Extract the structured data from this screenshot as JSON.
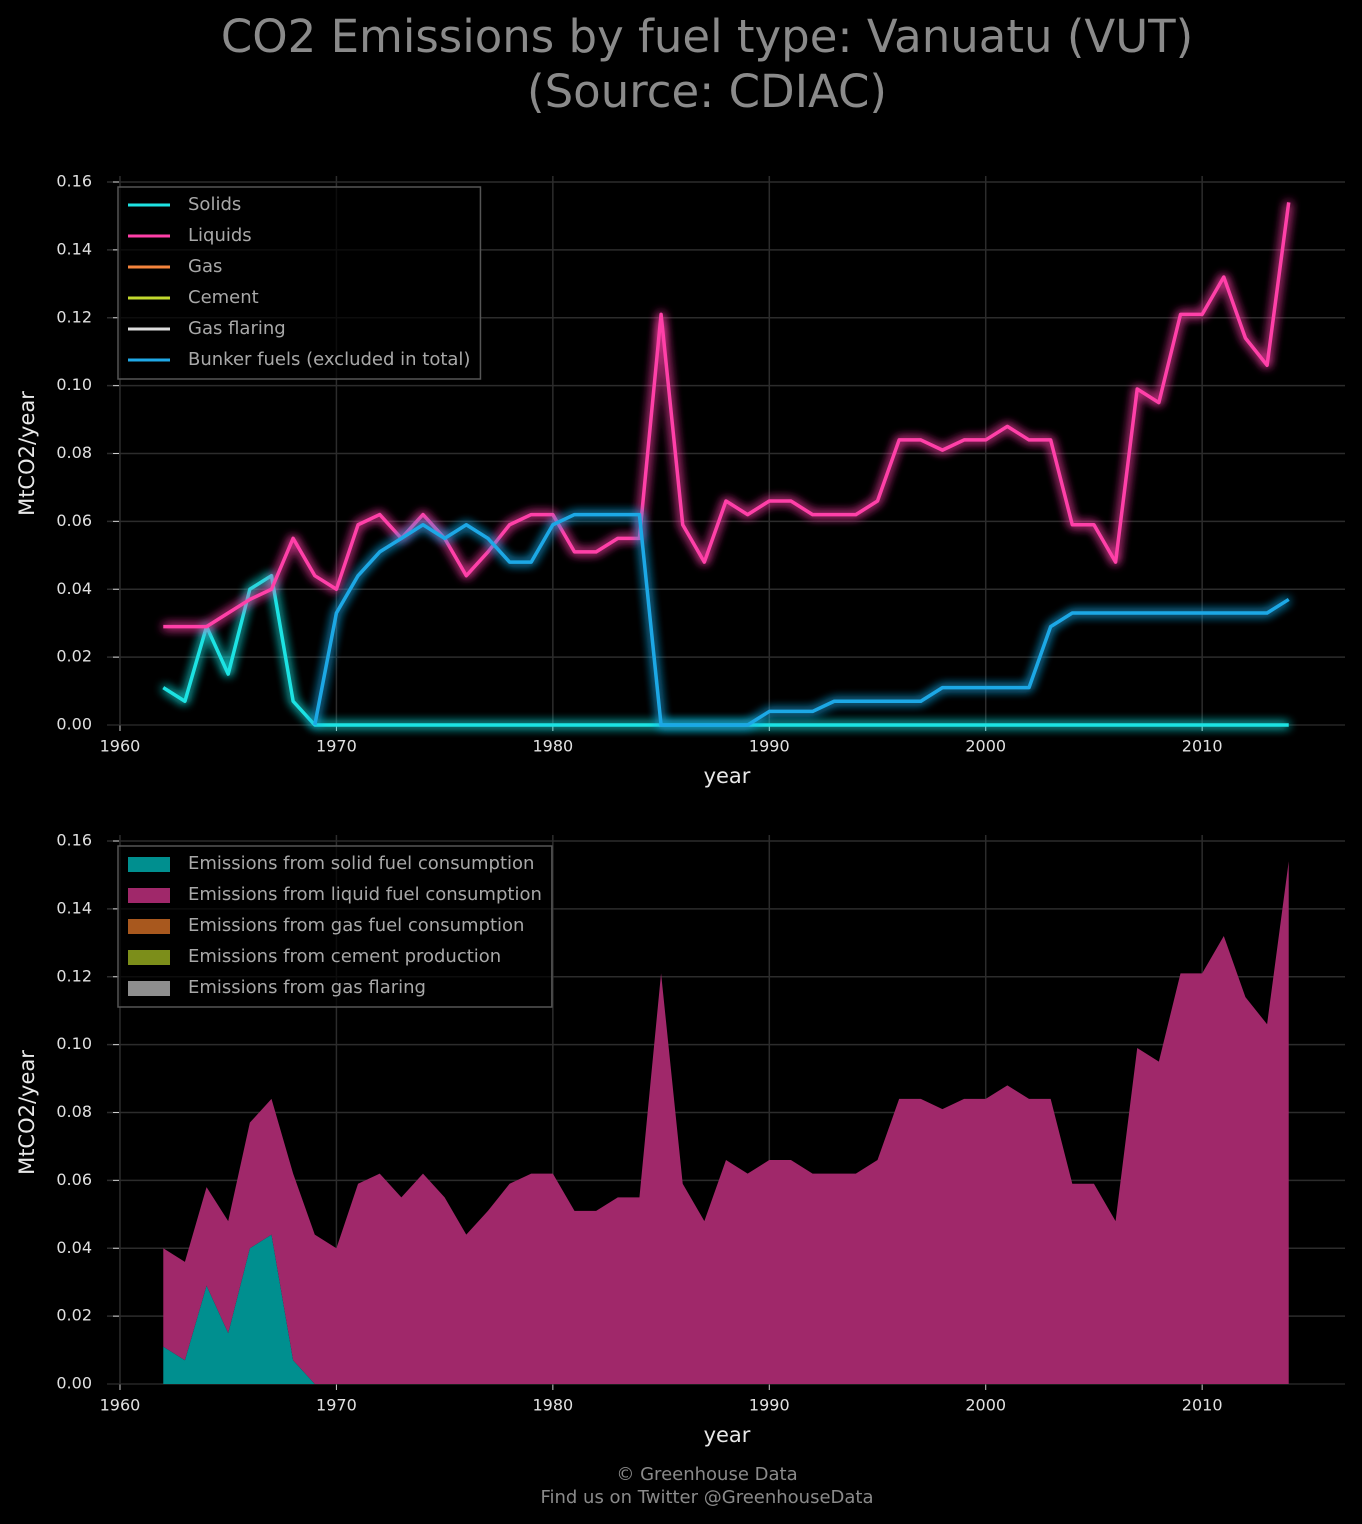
{
  "title": "CO2 Emissions by fuel type: Vanuatu (VUT)",
  "subtitle": "(Source: CDIAC)",
  "footer": [
    "© Greenhouse Data",
    "Find us on Twitter @GreenhouseData"
  ],
  "chart_data": [
    {
      "type": "line",
      "xlabel": "year",
      "ylabel": "MtCO2/year",
      "x": [
        1962,
        1963,
        1964,
        1965,
        1966,
        1967,
        1968,
        1969,
        1970,
        1971,
        1972,
        1973,
        1974,
        1975,
        1976,
        1977,
        1978,
        1979,
        1980,
        1981,
        1982,
        1983,
        1984,
        1985,
        1986,
        1987,
        1988,
        1989,
        1990,
        1991,
        1992,
        1993,
        1994,
        1995,
        1996,
        1997,
        1998,
        1999,
        2000,
        2001,
        2002,
        2003,
        2004,
        2005,
        2006,
        2007,
        2008,
        2009,
        2010,
        2011,
        2012,
        2013,
        2014
      ],
      "xlim": [
        1959.4,
        2016.6
      ],
      "xticks": [
        1960,
        1970,
        1980,
        1990,
        2000,
        2010
      ],
      "ylim": [
        0,
        0.16
      ],
      "yticks": [
        {
          "value": 0,
          "label": "0.00"
        },
        0.02,
        0.04,
        0.06,
        0.08,
        {
          "value": 0.1,
          "label": "0.10"
        },
        0.12,
        0.14,
        0.16
      ],
      "grid": true,
      "legend": "upper left",
      "series": [
        {
          "name": "Solids",
          "color": "#1ee3e3",
          "values": [
            0.011,
            0.007,
            0.029,
            0.015,
            0.04,
            0.044,
            0.007,
            0,
            0,
            0,
            0,
            0,
            0,
            0,
            0,
            0,
            0,
            0,
            0,
            0,
            0,
            0,
            0,
            0,
            0,
            0,
            0,
            0,
            0,
            0,
            0,
            0,
            0,
            0,
            0,
            0,
            0,
            0,
            0,
            0,
            0,
            0,
            0,
            0,
            0,
            0,
            0,
            0,
            0,
            0,
            0,
            0,
            0
          ]
        },
        {
          "name": "Liquids",
          "color": "#ff3fa8",
          "values": [
            0.029,
            0.029,
            0.029,
            0.033,
            0.037,
            0.04,
            0.055,
            0.044,
            0.04,
            0.059,
            0.062,
            0.055,
            0.062,
            0.055,
            0.044,
            0.051,
            0.059,
            0.062,
            0.062,
            0.051,
            0.051,
            0.055,
            0.055,
            0.121,
            0.059,
            0.048,
            0.066,
            0.062,
            0.066,
            0.066,
            0.062,
            0.062,
            0.062,
            0.066,
            0.084,
            0.084,
            0.081,
            0.084,
            0.084,
            0.088,
            0.084,
            0.084,
            0.059,
            0.059,
            0.048,
            0.099,
            0.095,
            0.121,
            0.121,
            0.132,
            0.114,
            0.106,
            0.154
          ]
        },
        {
          "name": "Gas",
          "color": "#f5843c",
          "values": [
            0,
            0,
            0,
            0,
            0,
            0,
            0,
            0,
            0,
            0,
            0,
            0,
            0,
            0,
            0,
            0,
            0,
            0,
            0,
            0,
            0,
            0,
            0,
            0,
            0,
            0,
            0,
            0,
            0,
            0,
            0,
            0,
            0,
            0,
            0,
            0,
            0,
            0,
            0,
            0,
            0,
            0,
            0,
            0,
            0,
            0,
            0,
            0,
            0,
            0,
            0,
            0,
            0
          ]
        },
        {
          "name": "Cement",
          "color": "#c2d92e",
          "values": [
            0,
            0,
            0,
            0,
            0,
            0,
            0,
            0,
            0,
            0,
            0,
            0,
            0,
            0,
            0,
            0,
            0,
            0,
            0,
            0,
            0,
            0,
            0,
            0,
            0,
            0,
            0,
            0,
            0,
            0,
            0,
            0,
            0,
            0,
            0,
            0,
            0,
            0,
            0,
            0,
            0,
            0,
            0,
            0,
            0,
            0,
            0,
            0,
            0,
            0,
            0,
            0,
            0
          ]
        },
        {
          "name": "Gas flaring",
          "color": "#dddddd",
          "values": [
            0,
            0,
            0,
            0,
            0,
            0,
            0,
            0,
            0,
            0,
            0,
            0,
            0,
            0,
            0,
            0,
            0,
            0,
            0,
            0,
            0,
            0,
            0,
            0,
            0,
            0,
            0,
            0,
            0,
            0,
            0,
            0,
            0,
            0,
            0,
            0,
            0,
            0,
            0,
            0,
            0,
            0,
            0,
            0,
            0,
            0,
            0,
            0,
            0,
            0,
            0,
            0,
            0
          ]
        },
        {
          "name": "Bunker fuels (excluded in total)",
          "color": "#1fa8e6",
          "values": [
            null,
            null,
            null,
            null,
            null,
            null,
            null,
            0,
            0.033,
            0.044,
            0.051,
            0.055,
            0.059,
            0.055,
            0.059,
            0.055,
            0.048,
            0.048,
            0.059,
            0.062,
            0.062,
            0.062,
            0.062,
            0,
            0,
            0,
            0,
            0,
            0.004,
            0.004,
            0.004,
            0.007,
            0.007,
            0.007,
            0.007,
            0.007,
            0.011,
            0.011,
            0.011,
            0.011,
            0.011,
            0.029,
            0.033,
            0.033,
            0.033,
            0.033,
            0.033,
            0.033,
            0.033,
            0.033,
            0.033,
            0.033,
            0.037
          ]
        }
      ]
    },
    {
      "type": "stacked_area",
      "xlabel": "year",
      "ylabel": "MtCO2/year",
      "x": [
        1962,
        1963,
        1964,
        1965,
        1966,
        1967,
        1968,
        1969,
        1970,
        1971,
        1972,
        1973,
        1974,
        1975,
        1976,
        1977,
        1978,
        1979,
        1980,
        1981,
        1982,
        1983,
        1984,
        1985,
        1986,
        1987,
        1988,
        1989,
        1990,
        1991,
        1992,
        1993,
        1994,
        1995,
        1996,
        1997,
        1998,
        1999,
        2000,
        2001,
        2002,
        2003,
        2004,
        2005,
        2006,
        2007,
        2008,
        2009,
        2010,
        2011,
        2012,
        2013,
        2014
      ],
      "xlim": [
        1959.4,
        2016.6
      ],
      "xticks": [
        1960,
        1970,
        1980,
        1990,
        2000,
        2010
      ],
      "ylim": [
        0,
        0.16
      ],
      "yticks": [
        {
          "value": 0,
          "label": "0.00"
        },
        0.02,
        0.04,
        0.06,
        0.08,
        {
          "value": 0.1,
          "label": "0.10"
        },
        0.12,
        0.14,
        0.16
      ],
      "grid": true,
      "legend": "upper left",
      "series": [
        {
          "name": "Emissions from solid fuel consumption",
          "color": "#008f8f",
          "values": [
            0.011,
            0.007,
            0.029,
            0.015,
            0.04,
            0.044,
            0.007,
            0,
            0,
            0,
            0,
            0,
            0,
            0,
            0,
            0,
            0,
            0,
            0,
            0,
            0,
            0,
            0,
            0,
            0,
            0,
            0,
            0,
            0,
            0,
            0,
            0,
            0,
            0,
            0,
            0,
            0,
            0,
            0,
            0,
            0,
            0,
            0,
            0,
            0,
            0,
            0,
            0,
            0,
            0,
            0,
            0,
            0
          ]
        },
        {
          "name": "Emissions from liquid fuel consumption",
          "color": "#a0286a",
          "values": [
            0.029,
            0.029,
            0.029,
            0.033,
            0.037,
            0.04,
            0.055,
            0.044,
            0.04,
            0.059,
            0.062,
            0.055,
            0.062,
            0.055,
            0.044,
            0.051,
            0.059,
            0.062,
            0.062,
            0.051,
            0.051,
            0.055,
            0.055,
            0.121,
            0.059,
            0.048,
            0.066,
            0.062,
            0.066,
            0.066,
            0.062,
            0.062,
            0.062,
            0.066,
            0.084,
            0.084,
            0.081,
            0.084,
            0.084,
            0.088,
            0.084,
            0.084,
            0.059,
            0.059,
            0.048,
            0.099,
            0.095,
            0.121,
            0.121,
            0.132,
            0.114,
            0.106,
            0.154
          ]
        },
        {
          "name": "Emissions from gas fuel consumption",
          "color": "#a8581e",
          "values": [
            0,
            0,
            0,
            0,
            0,
            0,
            0,
            0,
            0,
            0,
            0,
            0,
            0,
            0,
            0,
            0,
            0,
            0,
            0,
            0,
            0,
            0,
            0,
            0,
            0,
            0,
            0,
            0,
            0,
            0,
            0,
            0,
            0,
            0,
            0,
            0,
            0,
            0,
            0,
            0,
            0,
            0,
            0,
            0,
            0,
            0,
            0,
            0,
            0,
            0,
            0,
            0,
            0
          ]
        },
        {
          "name": "Emissions from cement production",
          "color": "#7c8e1a",
          "values": [
            0,
            0,
            0,
            0,
            0,
            0,
            0,
            0,
            0,
            0,
            0,
            0,
            0,
            0,
            0,
            0,
            0,
            0,
            0,
            0,
            0,
            0,
            0,
            0,
            0,
            0,
            0,
            0,
            0,
            0,
            0,
            0,
            0,
            0,
            0,
            0,
            0,
            0,
            0,
            0,
            0,
            0,
            0,
            0,
            0,
            0,
            0,
            0,
            0,
            0,
            0,
            0,
            0
          ]
        },
        {
          "name": "Emissions from gas flaring",
          "color": "#8e8e8e",
          "values": [
            0,
            0,
            0,
            0,
            0,
            0,
            0,
            0,
            0,
            0,
            0,
            0,
            0,
            0,
            0,
            0,
            0,
            0,
            0,
            0,
            0,
            0,
            0,
            0,
            0,
            0,
            0,
            0,
            0,
            0,
            0,
            0,
            0,
            0,
            0,
            0,
            0,
            0,
            0,
            0,
            0,
            0,
            0,
            0,
            0,
            0,
            0,
            0,
            0,
            0,
            0,
            0,
            0
          ]
        }
      ]
    }
  ]
}
